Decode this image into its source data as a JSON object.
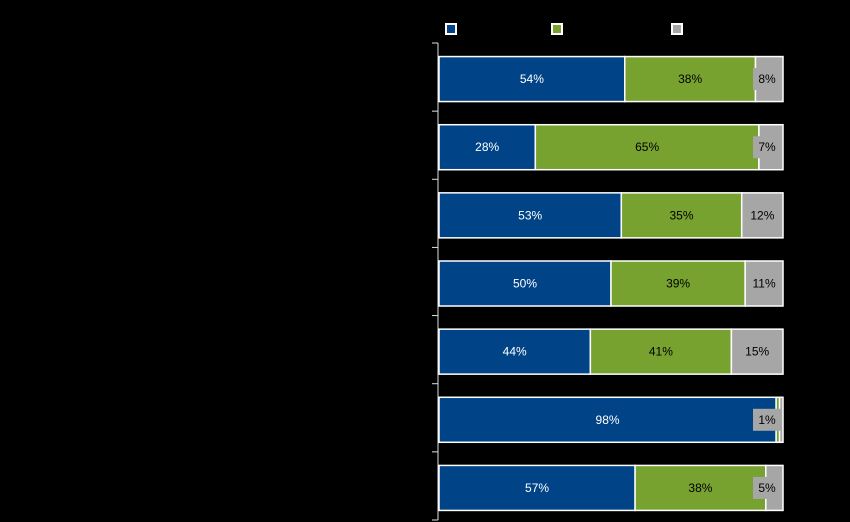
{
  "chart_data": {
    "type": "bar",
    "orientation": "horizontal",
    "stacked": true,
    "normalized": true,
    "title": "",
    "xlabel": "",
    "ylabel": "",
    "xlim": [
      0,
      100
    ],
    "grid": false,
    "legend": {
      "placement": "top"
    },
    "categories": [
      "",
      "",
      "",
      "",
      "",
      "",
      ""
    ],
    "series": [
      {
        "color": "#004487",
        "values": [
          54,
          28,
          53,
          50,
          44,
          98,
          57
        ],
        "data_labels": [
          "54%",
          "28%",
          "53%",
          "50%",
          "44%",
          "98%",
          "57%"
        ]
      },
      {
        "color": "#77a22f",
        "values": [
          38,
          65,
          35,
          39,
          41,
          1,
          38
        ],
        "data_labels": [
          "38%",
          "65%",
          "35%",
          "39%",
          "41%",
          "",
          "38%"
        ]
      },
      {
        "color": "#a6a6a6",
        "values": [
          8,
          7,
          12,
          11,
          15,
          1,
          5
        ],
        "data_labels": [
          "8%",
          "7%",
          "12%",
          "11%",
          "15%",
          "1%",
          "5%"
        ]
      }
    ]
  }
}
